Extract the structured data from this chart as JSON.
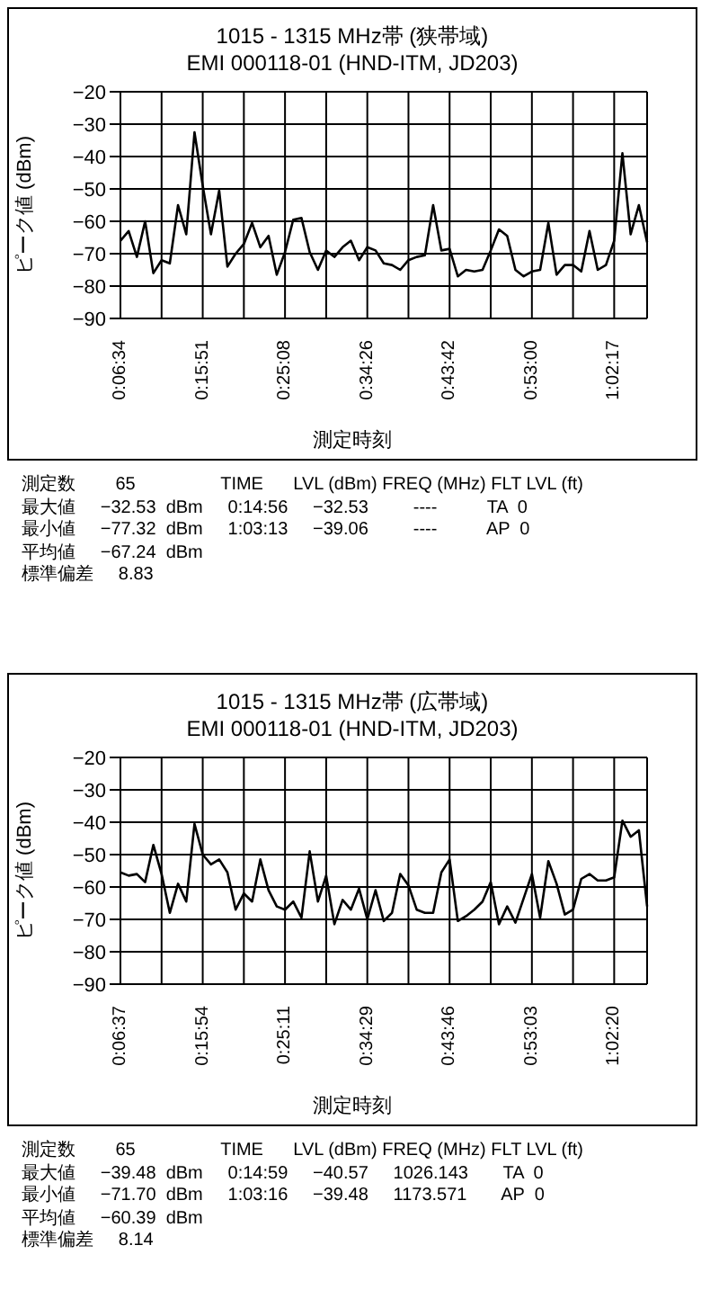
{
  "chart_data": [
    {
      "type": "line",
      "title": "1015 - 1315 MHz帯 (狭帯域)",
      "subtitle": "EMI 000118-01 (HND-ITM,  JD203)",
      "xlabel": "測定時刻",
      "ylabel": "ピーク値 (dBm)",
      "categories": [
        "0:06:34",
        null,
        null,
        null,
        null,
        null,
        null,
        null,
        null,
        null,
        "0:15:51",
        null,
        null,
        null,
        null,
        null,
        null,
        null,
        null,
        null,
        "0:25:08",
        null,
        null,
        null,
        null,
        null,
        null,
        null,
        null,
        null,
        "0:34:26",
        null,
        null,
        null,
        null,
        null,
        null,
        null,
        null,
        null,
        "0:43:42",
        null,
        null,
        null,
        null,
        null,
        null,
        null,
        null,
        null,
        "0:53:00",
        null,
        null,
        null,
        null,
        null,
        null,
        null,
        null,
        null,
        "1:02:17",
        null,
        null,
        null,
        null
      ],
      "series": [
        {
          "color": "#000000",
          "values": [
            -66,
            -63,
            -71,
            -60,
            -76,
            -72,
            -73,
            -55,
            -64,
            -32.5,
            -49,
            -64,
            -50.5,
            -74,
            -70,
            -67,
            -60.5,
            -68,
            -64.5,
            -76.5,
            -69.5,
            -59.5,
            -59,
            -69.5,
            -75,
            -69,
            -71,
            -68,
            -66,
            -72,
            -68,
            -69,
            -73,
            -73.5,
            -75,
            -72,
            -71,
            -70.5,
            -55,
            -69,
            -68.5,
            -77,
            -75,
            -75.5,
            -75,
            -69,
            -62.5,
            -64.5,
            -75,
            -77,
            -75.5,
            -75,
            -60.5,
            -76.5,
            -73.5,
            -73.5,
            -75.5,
            -63,
            -75,
            -73.5,
            -66,
            -39,
            -64,
            -55,
            -66.5
          ]
        }
      ],
      "ylim": [
        -90,
        -20
      ],
      "yticks": [
        -90,
        -80,
        -70,
        -60,
        -50,
        -40,
        -30,
        -20
      ],
      "grid": true,
      "marker": "none",
      "annotations": [
        "測定数        65                 TIME      LVL (dBm) FREQ (MHz) FLT LVL (ft)",
        "最大値     −32.53  dBm     0:14:56     −32.53         ----          TA  0",
        "最小値     −77.32  dBm     1:03:13     −39.06         ----          AP  0",
        "平均値     −67.24  dBm",
        "標準偏差     8.83"
      ]
    },
    {
      "type": "line",
      "title": "1015 - 1315 MHz帯 (広帯域)",
      "subtitle": "EMI 000118-01 (HND-ITM,  JD203)",
      "xlabel": "測定時刻",
      "ylabel": "ピーク値 (dBm)",
      "categories": [
        "0:06:37",
        null,
        null,
        null,
        null,
        null,
        null,
        null,
        null,
        null,
        "0:15:54",
        null,
        null,
        null,
        null,
        null,
        null,
        null,
        null,
        null,
        "0:25:11",
        null,
        null,
        null,
        null,
        null,
        null,
        null,
        null,
        null,
        "0:34:29",
        null,
        null,
        null,
        null,
        null,
        null,
        null,
        null,
        null,
        "0:43:46",
        null,
        null,
        null,
        null,
        null,
        null,
        null,
        null,
        null,
        "0:53:03",
        null,
        null,
        null,
        null,
        null,
        null,
        null,
        null,
        null,
        "1:02:20",
        null,
        null,
        null,
        null
      ],
      "series": [
        {
          "color": "#000000",
          "values": [
            -55.5,
            -56.5,
            -56,
            -58.5,
            -47,
            -56,
            -68,
            -59,
            -64.5,
            -40.5,
            -50,
            -53,
            -51.5,
            -55.5,
            -67,
            -62,
            -64.5,
            -51.5,
            -61,
            -66,
            -67,
            -64.5,
            -69.5,
            -49,
            -64.5,
            -56.5,
            -71.5,
            -64,
            -67,
            -60.5,
            -70,
            -61,
            -70.5,
            -68,
            -56,
            -59.5,
            -67,
            -68,
            -68,
            -55.5,
            -51.5,
            -70.5,
            -69,
            -67,
            -64.5,
            -58.5,
            -71.5,
            -66,
            -71,
            -63.5,
            -56,
            -69.5,
            -52,
            -59,
            -68.5,
            -67,
            -57.5,
            -56,
            -58,
            -58,
            -57,
            -39.5,
            -44.5,
            -42.5,
            -66
          ]
        }
      ],
      "ylim": [
        -90,
        -20
      ],
      "yticks": [
        -90,
        -80,
        -70,
        -60,
        -50,
        -40,
        -30,
        -20
      ],
      "grid": true,
      "marker": "none",
      "annotations": [
        "測定数        65                 TIME      LVL (dBm) FREQ (MHz) FLT LVL (ft)",
        "最大値     −39.48  dBm     0:14:59     −40.57     1026.143       TA  0",
        "最小値     −71.70  dBm     1:03:16     −39.48     1173.571       AP  0",
        "平均値     −60.39  dBm",
        "標準偏差     8.14"
      ]
    }
  ]
}
